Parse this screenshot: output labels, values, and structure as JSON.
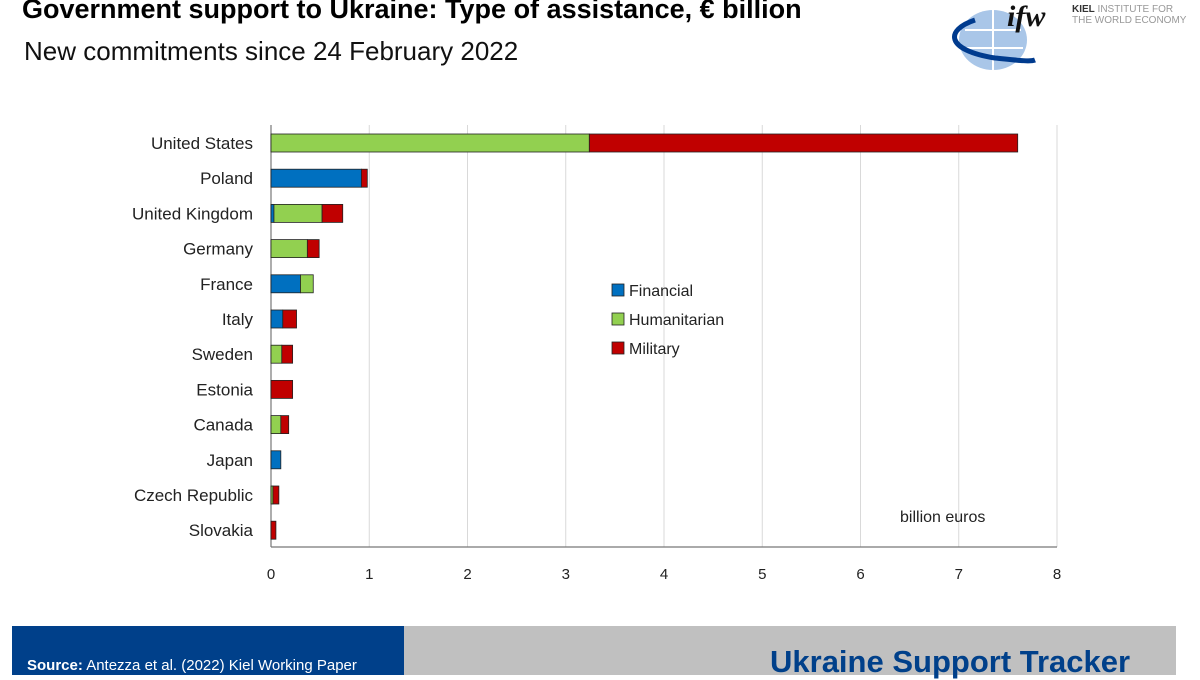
{
  "header": {
    "title": "Government support to Ukraine: Type of assistance, € billion",
    "subtitle": "New commitments since 24 February 2022"
  },
  "logo": {
    "mark": "ifw",
    "line1": "KIEL INSTITUTE FOR",
    "line2": "THE WORLD ECONOMY"
  },
  "footer": {
    "source_label": "Source:",
    "source_text": " Antezza et al. (2022) Kiel Working Paper",
    "tracker": "Ukraine Support Tracker"
  },
  "chart_data": {
    "type": "bar",
    "orientation": "horizontal",
    "stacked": true,
    "categories": [
      "United States",
      "Poland",
      "United Kingdom",
      "Germany",
      "France",
      "Italy",
      "Sweden",
      "Estonia",
      "Canada",
      "Japan",
      "Czech Republic",
      "Slovakia"
    ],
    "series": [
      {
        "name": "Financial",
        "color": "#0070c0",
        "values": [
          0,
          0.92,
          0.03,
          0,
          0.3,
          0.12,
          0,
          0,
          0,
          0.1,
          0,
          0
        ]
      },
      {
        "name": "Humanitarian",
        "color": "#92d050",
        "values": [
          3.24,
          0,
          0.49,
          0.37,
          0.13,
          0,
          0.11,
          0,
          0.1,
          0,
          0.02,
          0
        ]
      },
      {
        "name": "Military",
        "color": "#c00000",
        "values": [
          4.36,
          0.06,
          0.21,
          0.12,
          0,
          0.14,
          0.11,
          0.22,
          0.08,
          0,
          0.06,
          0.05
        ]
      }
    ],
    "xlim": [
      0,
      8
    ],
    "xticks": [
      "0",
      "1",
      "2",
      "3",
      "4",
      "5",
      "6",
      "7",
      "8"
    ],
    "unit_label": "billion euros",
    "grid": true,
    "legend": "center"
  }
}
